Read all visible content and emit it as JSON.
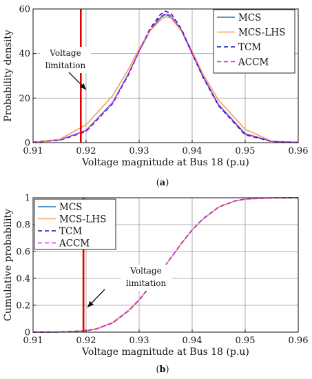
{
  "colors": {
    "MCS": "#1f77b4",
    "MCS-LHS": "#f0a060",
    "TCM": "#1010c8",
    "ACCM": "#e020e0",
    "limit": "#e00000"
  },
  "chart_data": [
    {
      "type": "line",
      "panel_label": "a",
      "xlabel": "Voltage magnitude at Bus 18 (p.u)",
      "ylabel": "Probability density",
      "xlim": [
        0.91,
        0.96
      ],
      "ylim": [
        0,
        60
      ],
      "xticks": [
        "0.91",
        "0.92",
        "0.93",
        "0.94",
        "0.95",
        "0.96"
      ],
      "yticks": [
        "0",
        "20",
        "40",
        "60"
      ],
      "grid": true,
      "legend_position": "top-right",
      "limit_x": 0.919,
      "annotation": [
        "Voltage",
        "limitation"
      ],
      "series": [
        {
          "name": "MCS",
          "style": "solid",
          "x": [
            0.91,
            0.915,
            0.92,
            0.925,
            0.928,
            0.93,
            0.932,
            0.934,
            0.935,
            0.936,
            0.938,
            0.94,
            0.942,
            0.945,
            0.95,
            0.955,
            0.96
          ],
          "y": [
            0.2,
            1.2,
            5.5,
            18,
            31,
            41,
            50,
            56,
            57.5,
            56.5,
            50,
            40,
            30,
            17,
            4,
            0.6,
            0.1
          ]
        },
        {
          "name": "MCS-LHS",
          "style": "solid",
          "x": [
            0.91,
            0.915,
            0.92,
            0.925,
            0.928,
            0.93,
            0.932,
            0.934,
            0.935,
            0.936,
            0.938,
            0.94,
            0.942,
            0.945,
            0.95,
            0.955,
            0.96
          ],
          "y": [
            0.3,
            1.5,
            8,
            21,
            33,
            42,
            50,
            55,
            56.5,
            56,
            50,
            41,
            31,
            19,
            6,
            0.6,
            0.1
          ]
        },
        {
          "name": "TCM",
          "style": "dashed",
          "x": [
            0.91,
            0.915,
            0.92,
            0.925,
            0.928,
            0.93,
            0.932,
            0.934,
            0.935,
            0.936,
            0.938,
            0.94,
            0.942,
            0.945,
            0.95,
            0.955,
            0.96
          ],
          "y": [
            0.2,
            1,
            5,
            17.5,
            30.5,
            41,
            51,
            57.5,
            59,
            58,
            51,
            40,
            29.5,
            16.5,
            3.5,
            0.5,
            0.1
          ]
        },
        {
          "name": "ACCM",
          "style": "dashed",
          "x": [
            0.91,
            0.915,
            0.92,
            0.925,
            0.928,
            0.93,
            0.932,
            0.934,
            0.935,
            0.936,
            0.938,
            0.94,
            0.942,
            0.945,
            0.95,
            0.955,
            0.96
          ],
          "y": [
            0.2,
            1.1,
            5.3,
            17.8,
            31,
            41,
            50.5,
            56.5,
            58,
            57,
            50.5,
            40,
            29.8,
            16.8,
            3.8,
            0.6,
            0.1
          ]
        }
      ]
    },
    {
      "type": "line",
      "panel_label": "b",
      "xlabel": "Voltage magnitude at Bus 18 (p.u)",
      "ylabel": "Cumulative probability",
      "xlim": [
        0.91,
        0.96
      ],
      "ylim": [
        0,
        1
      ],
      "xticks": [
        "0.91",
        "0.92",
        "0.93",
        "0.94",
        "0.95",
        "0.96"
      ],
      "yticks": [
        "0",
        "0.2",
        "0.4",
        "0.6",
        "0.8",
        "1"
      ],
      "grid": true,
      "legend_position": "top-left",
      "limit_x": 0.9195,
      "annotation": [
        "Voltage",
        "limitation"
      ],
      "series": [
        {
          "name": "MCS",
          "style": "solid",
          "x": [
            0.91,
            0.915,
            0.92,
            0.922,
            0.925,
            0.928,
            0.93,
            0.932,
            0.935,
            0.938,
            0.94,
            0.942,
            0.945,
            0.948,
            0.95,
            0.955,
            0.96
          ],
          "y": [
            0,
            0.001,
            0.01,
            0.025,
            0.07,
            0.16,
            0.24,
            0.34,
            0.5,
            0.66,
            0.76,
            0.84,
            0.93,
            0.975,
            0.99,
            0.999,
            1
          ]
        },
        {
          "name": "MCS-LHS",
          "style": "solid",
          "x": [
            0.91,
            0.915,
            0.92,
            0.922,
            0.925,
            0.928,
            0.93,
            0.932,
            0.935,
            0.938,
            0.94,
            0.942,
            0.945,
            0.948,
            0.95,
            0.955,
            0.96
          ],
          "y": [
            0,
            0.001,
            0.011,
            0.027,
            0.072,
            0.162,
            0.242,
            0.342,
            0.5,
            0.66,
            0.76,
            0.84,
            0.93,
            0.975,
            0.99,
            0.999,
            1
          ]
        },
        {
          "name": "TCM",
          "style": "dashed",
          "x": [
            0.91,
            0.915,
            0.92,
            0.922,
            0.925,
            0.928,
            0.93,
            0.932,
            0.935,
            0.938,
            0.94,
            0.942,
            0.945,
            0.948,
            0.95,
            0.955,
            0.96
          ],
          "y": [
            0,
            0.001,
            0.01,
            0.024,
            0.068,
            0.158,
            0.238,
            0.338,
            0.5,
            0.662,
            0.762,
            0.842,
            0.932,
            0.976,
            0.991,
            0.999,
            1
          ]
        },
        {
          "name": "ACCM",
          "style": "dashed",
          "x": [
            0.91,
            0.915,
            0.92,
            0.922,
            0.925,
            0.928,
            0.93,
            0.932,
            0.935,
            0.938,
            0.94,
            0.942,
            0.945,
            0.948,
            0.95,
            0.955,
            0.96
          ],
          "y": [
            0,
            0.001,
            0.01,
            0.025,
            0.069,
            0.159,
            0.239,
            0.339,
            0.5,
            0.661,
            0.761,
            0.841,
            0.931,
            0.975,
            0.99,
            0.999,
            1
          ]
        }
      ]
    }
  ]
}
